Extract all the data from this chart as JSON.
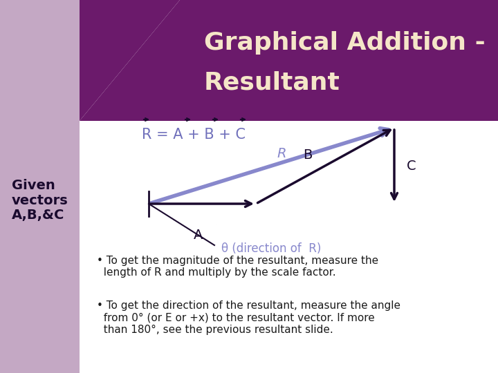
{
  "title_line1": "Graphical Addition -",
  "title_line2": "Resultant",
  "title_bg_color": "#6B1A6B",
  "left_sidebar_color": "#C4A8C4",
  "bg_color": "#FFFFFF",
  "given_text": "Given\nvectors\nA,B,&C",
  "given_text_color": "#1A0A2E",
  "equation_color": "#7070BB",
  "arrow_eq_color": "#1A0A2E",
  "vector_color": "#1A0A2E",
  "vector_R_color": "#8888CC",
  "label_color": "#1A0A2E",
  "label_R_color": "#8888CC",
  "theta_label_color": "#8888CC",
  "title_text_color": "#F5E6C8",
  "bullet_color": "#1A1A1A",
  "bullet1": "To get the magnitude of the resultant, measure the\nlength of R and multiply by the scale factor.",
  "bullet2": "To get the direction of the resultant, measure the angle\nfrom 0° (or E or +x) to the resultant vector. If more\nthan 180°, see the previous resultant slide.",
  "theta_label": "θ (direction of  R)"
}
